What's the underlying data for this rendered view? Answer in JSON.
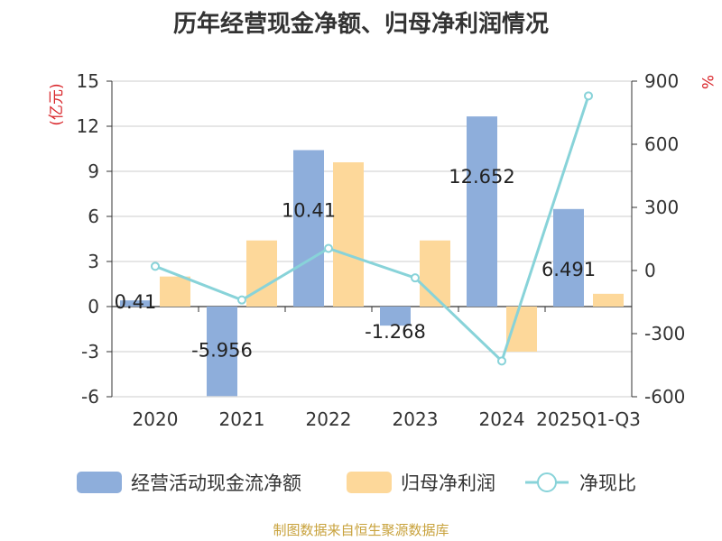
{
  "chart_data": {
    "type": "bar",
    "title": "历年经营现金净额、归母净利润情况",
    "categories": [
      "2020",
      "2021",
      "2022",
      "2023",
      "2024",
      "2025Q1-Q3"
    ],
    "series": [
      {
        "name": "经营活动现金流净额",
        "type": "bar",
        "axis": "left",
        "color": "#8eaedb",
        "values": [
          0.41,
          -5.956,
          10.41,
          -1.268,
          12.652,
          6.491
        ],
        "labels": [
          "0.41",
          "-5.956",
          "10.41",
          "-1.268",
          "12.652",
          "6.491"
        ]
      },
      {
        "name": "归母净利润",
        "type": "bar",
        "axis": "left",
        "color": "#fdd89a",
        "values": [
          2.0,
          4.4,
          9.6,
          4.4,
          -3.0,
          0.85
        ]
      },
      {
        "name": "净现比",
        "type": "line",
        "axis": "right",
        "color": "#88d3d9",
        "values": [
          20,
          -140,
          105,
          -35,
          -430,
          830
        ]
      }
    ],
    "y_left": {
      "unit": "(亿元)",
      "min": -6,
      "max": 15,
      "ticks": [
        -6,
        -3,
        0,
        3,
        6,
        9,
        12,
        15
      ]
    },
    "y_right": {
      "unit": "%",
      "min": -600,
      "max": 900,
      "ticks": [
        -600,
        -300,
        0,
        300,
        600,
        900
      ]
    },
    "grid": true,
    "legend_position": "bottom"
  },
  "source": "制图数据来自恒生聚源数据库"
}
